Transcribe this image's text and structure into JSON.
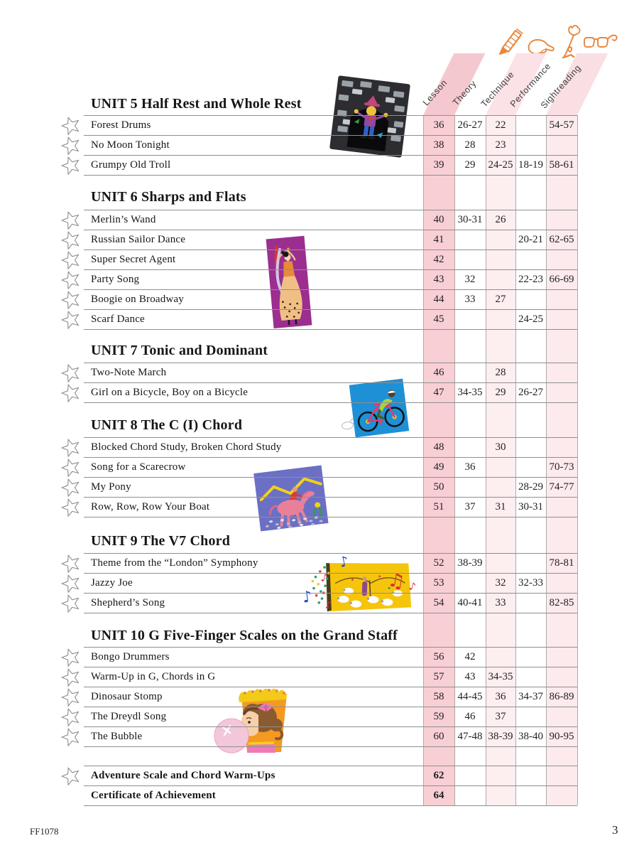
{
  "page": {
    "catalog_number": "FF1078",
    "page_number": "3"
  },
  "colors": {
    "lesson_pink": "#f8cfd4",
    "technique_pink": "#fdeef0",
    "sightreading_pink": "#fceaed",
    "header_lesson_pink": "#f5c8cf",
    "header_technique_pink": "#fbe2e6",
    "header_sightreading_pink": "#f9dfe4",
    "accent_orange": "#e8873c",
    "line_gray": "#8f8f8f"
  },
  "header": {
    "columns": [
      {
        "label": "Lesson",
        "shaded": true
      },
      {
        "label": "Theory",
        "shaded": false
      },
      {
        "label": "Technique",
        "shaded": true
      },
      {
        "label": "Performance",
        "shaded": false
      },
      {
        "label": "Sightreading",
        "shaded": true
      }
    ],
    "icons": [
      "pencil-icon",
      "writing-hand-icon",
      "flower-icon",
      "eyeglasses-icon"
    ]
  },
  "illustrations": [
    "scarecrow-in-window",
    "flamenco-dancer",
    "cyclist",
    "pony-and-rider",
    "shepherd-with-sheep",
    "girl-blowing-bubble"
  ],
  "sections": [
    {
      "title": "UNIT 5 Half Rest and Whole Rest",
      "rows": [
        {
          "star": true,
          "bold": false,
          "name": "Forest Drums",
          "pages": [
            "36",
            "26-27",
            "22",
            "",
            "54-57"
          ]
        },
        {
          "star": true,
          "bold": false,
          "name": "No Moon Tonight",
          "pages": [
            "38",
            "28",
            "23",
            "",
            ""
          ]
        },
        {
          "star": true,
          "bold": false,
          "name": "Grumpy Old Troll",
          "pages": [
            "39",
            "29",
            "24-25",
            "18-19",
            "58-61"
          ]
        }
      ]
    },
    {
      "title": "UNIT 6 Sharps and Flats",
      "rows": [
        {
          "star": true,
          "bold": false,
          "name": "Merlin’s Wand",
          "pages": [
            "40",
            "30-31",
            "26",
            "",
            ""
          ]
        },
        {
          "star": true,
          "bold": false,
          "name": "Russian Sailor Dance",
          "pages": [
            "41",
            "",
            "",
            "20-21",
            "62-65"
          ]
        },
        {
          "star": true,
          "bold": false,
          "name": "Super Secret Agent",
          "pages": [
            "42",
            "",
            "",
            "",
            ""
          ]
        },
        {
          "star": true,
          "bold": false,
          "name": "Party Song",
          "pages": [
            "43",
            "32",
            "",
            "22-23",
            "66-69"
          ]
        },
        {
          "star": true,
          "bold": false,
          "name": "Boogie on Broadway",
          "pages": [
            "44",
            "33",
            "27",
            "",
            ""
          ]
        },
        {
          "star": true,
          "bold": false,
          "name": "Scarf Dance",
          "pages": [
            "45",
            "",
            "",
            "24-25",
            ""
          ]
        }
      ]
    },
    {
      "title": "UNIT 7 Tonic and Dominant",
      "rows": [
        {
          "star": true,
          "bold": false,
          "name": "Two-Note March",
          "pages": [
            "46",
            "",
            "28",
            "",
            ""
          ]
        },
        {
          "star": true,
          "bold": false,
          "name": "Girl on a Bicycle, Boy on a Bicycle",
          "pages": [
            "47",
            "34-35",
            "29",
            "26-27",
            ""
          ]
        }
      ]
    },
    {
      "title": "UNIT 8 The C (I) Chord",
      "rows": [
        {
          "star": true,
          "bold": false,
          "name": "Blocked Chord Study, Broken Chord Study",
          "pages": [
            "48",
            "",
            "30",
            "",
            ""
          ]
        },
        {
          "star": true,
          "bold": false,
          "name": "Song for a Scarecrow",
          "pages": [
            "49",
            "36",
            "",
            "",
            "70-73"
          ]
        },
        {
          "star": true,
          "bold": false,
          "name": "My Pony",
          "pages": [
            "50",
            "",
            "",
            "28-29",
            "74-77"
          ]
        },
        {
          "star": true,
          "bold": false,
          "name": "Row, Row, Row Your Boat",
          "pages": [
            "51",
            "37",
            "31",
            "30-31",
            ""
          ]
        }
      ]
    },
    {
      "title": "UNIT 9 The V7 Chord",
      "rows": [
        {
          "star": true,
          "bold": false,
          "name": "Theme from the “London” Symphony",
          "pages": [
            "52",
            "38-39",
            "",
            "",
            "78-81"
          ]
        },
        {
          "star": true,
          "bold": false,
          "name": "Jazzy Joe",
          "pages": [
            "53",
            "",
            "32",
            "32-33",
            ""
          ]
        },
        {
          "star": true,
          "bold": false,
          "name": "Shepherd’s Song",
          "pages": [
            "54",
            "40-41",
            "33",
            "",
            "82-85"
          ]
        }
      ]
    },
    {
      "title": "UNIT 10 G Five-Finger Scales on the Grand Staff",
      "rows": [
        {
          "star": true,
          "bold": false,
          "name": "Bongo Drummers",
          "pages": [
            "56",
            "42",
            "",
            "",
            ""
          ]
        },
        {
          "star": true,
          "bold": false,
          "name": "Warm-Up in G, Chords in G",
          "pages": [
            "57",
            "43",
            "34-35",
            "",
            ""
          ]
        },
        {
          "star": true,
          "bold": false,
          "name": "Dinosaur Stomp",
          "pages": [
            "58",
            "44-45",
            "36",
            "34-37",
            "86-89"
          ]
        },
        {
          "star": true,
          "bold": false,
          "name": "The Dreydl Song",
          "pages": [
            "59",
            "46",
            "37",
            "",
            ""
          ]
        },
        {
          "star": true,
          "bold": false,
          "name": "The Bubble",
          "pages": [
            "60",
            "47-48",
            "38-39",
            "38-40",
            "90-95"
          ]
        }
      ]
    },
    {
      "title": "",
      "rows": [
        {
          "star": true,
          "bold": true,
          "name": "Adventure Scale and Chord Warm-Ups",
          "pages": [
            "62",
            "",
            "",
            "",
            ""
          ]
        },
        {
          "star": false,
          "bold": true,
          "name": "Certificate of Achievement",
          "pages": [
            "64",
            "",
            "",
            "",
            ""
          ]
        }
      ]
    }
  ]
}
